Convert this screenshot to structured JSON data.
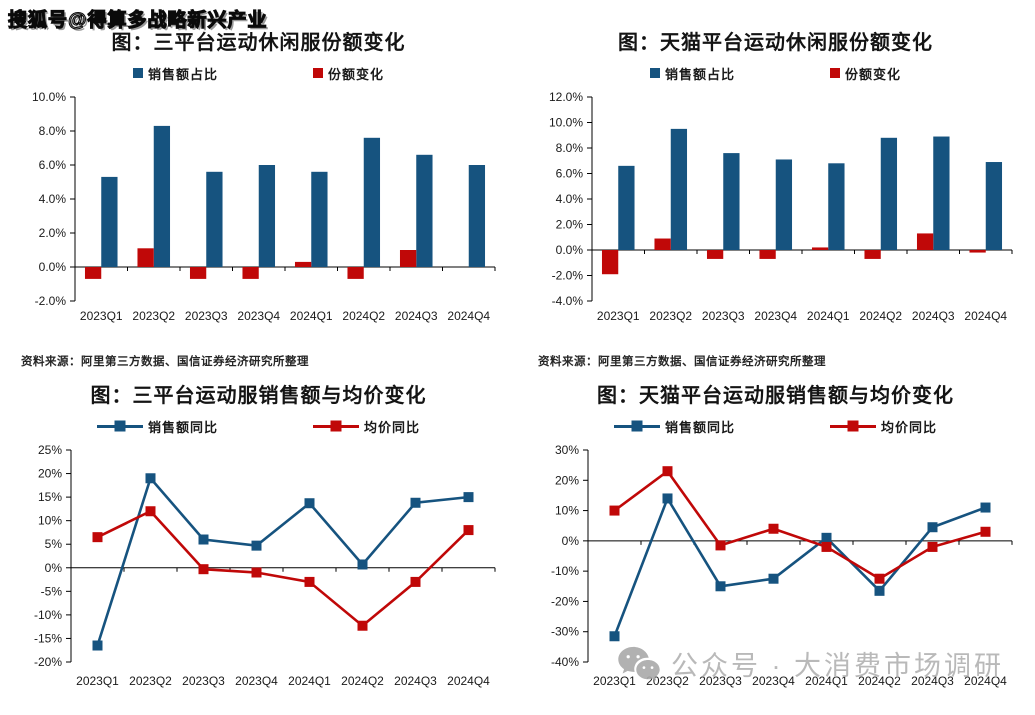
{
  "watermarks": {
    "top": "搜狐号@得算多战略新兴产业",
    "bottom": "公众号 · 大消费市场调研"
  },
  "colors": {
    "blue": "#16537f",
    "red": "#c00808",
    "axis": "#000000",
    "watermark_gray": "#a9a9a9"
  },
  "chart_data": [
    {
      "type": "bar",
      "title": "图：三平台运动休闲服份额变化",
      "categories": [
        "2023Q1",
        "2023Q2",
        "2023Q3",
        "2023Q4",
        "2024Q1",
        "2024Q2",
        "2024Q3",
        "2024Q4"
      ],
      "series": [
        {
          "name": "销售额占比",
          "color": "#16537f",
          "values": [
            5.3,
            8.3,
            5.6,
            6.0,
            5.6,
            7.6,
            6.6,
            6.0
          ]
        },
        {
          "name": "份额变化",
          "color": "#c00808",
          "values": [
            -0.7,
            1.1,
            -0.7,
            -0.7,
            0.3,
            -0.7,
            1.0,
            0.0
          ]
        }
      ],
      "ylim": [
        -2,
        10
      ],
      "yticks": [
        10,
        8,
        6,
        4,
        2,
        0,
        -2
      ],
      "ytick_labels": [
        "10.0%",
        "8.0%",
        "6.0%",
        "4.0%",
        "2.0%",
        "0.0%",
        "-2.0%"
      ],
      "legend_position": "top",
      "grid": false,
      "source": "资料来源：阿里第三方数据、国信证券经济研究所整理"
    },
    {
      "type": "bar",
      "title": "图：天猫平台运动休闲服份额变化",
      "categories": [
        "2023Q1",
        "2023Q2",
        "2023Q3",
        "2023Q4",
        "2024Q1",
        "2024Q2",
        "2024Q3",
        "2024Q4"
      ],
      "series": [
        {
          "name": "销售额占比",
          "color": "#16537f",
          "values": [
            6.6,
            9.5,
            7.6,
            7.1,
            6.8,
            8.8,
            8.9,
            6.9
          ]
        },
        {
          "name": "份额变化",
          "color": "#c00808",
          "values": [
            -1.9,
            0.9,
            -0.7,
            -0.7,
            0.2,
            -0.7,
            1.3,
            -0.2
          ]
        }
      ],
      "ylim": [
        -4,
        12
      ],
      "yticks": [
        12,
        10,
        8,
        6,
        4,
        2,
        0,
        -2,
        -4
      ],
      "ytick_labels": [
        "12.0%",
        "10.0%",
        "8.0%",
        "6.0%",
        "4.0%",
        "2.0%",
        "0.0%",
        "-2.0%",
        "-4.0%"
      ],
      "legend_position": "top",
      "grid": false,
      "source": "资料来源：阿里第三方数据、国信证券经济研究所整理"
    },
    {
      "type": "line",
      "title": "图：三平台运动服销售额与均价变化",
      "categories": [
        "2023Q1",
        "2023Q2",
        "2023Q3",
        "2023Q4",
        "2024Q1",
        "2024Q2",
        "2024Q3",
        "2024Q4"
      ],
      "series": [
        {
          "name": "销售额同比",
          "color": "#16537f",
          "values": [
            -16.5,
            19,
            6,
            4.7,
            13.7,
            0.7,
            13.8,
            15
          ]
        },
        {
          "name": "均价同比",
          "color": "#c00808",
          "values": [
            6.5,
            12,
            -0.3,
            -1,
            -3,
            -12.3,
            -3,
            8
          ]
        }
      ],
      "ylim": [
        -20,
        25
      ],
      "yticks": [
        25,
        20,
        15,
        10,
        5,
        0,
        -5,
        -10,
        -15,
        -20
      ],
      "ytick_labels": [
        "25%",
        "20%",
        "15%",
        "10%",
        "5%",
        "0%",
        "-5%",
        "-10%",
        "-15%",
        "-20%"
      ],
      "legend_position": "top",
      "grid": false,
      "source": ""
    },
    {
      "type": "line",
      "title": "图：天猫平台运动服销售额与均价变化",
      "categories": [
        "2023Q1",
        "2023Q2",
        "2023Q3",
        "2023Q4",
        "2024Q1",
        "2024Q2",
        "2024Q3",
        "2024Q4"
      ],
      "series": [
        {
          "name": "销售额同比",
          "color": "#16537f",
          "values": [
            -31.5,
            14,
            -15,
            -12.5,
            1,
            -16.5,
            4.5,
            11
          ]
        },
        {
          "name": "均价同比",
          "color": "#c00808",
          "values": [
            10,
            23,
            -1.5,
            4,
            -2,
            -12.5,
            -2,
            3
          ]
        }
      ],
      "ylim": [
        -40,
        30
      ],
      "yticks": [
        30,
        20,
        10,
        0,
        -10,
        -20,
        -30,
        -40
      ],
      "ytick_labels": [
        "30%",
        "20%",
        "10%",
        "0%",
        "-10%",
        "-20%",
        "-30%",
        "-40%"
      ],
      "legend_position": "top",
      "grid": false,
      "source": ""
    }
  ]
}
